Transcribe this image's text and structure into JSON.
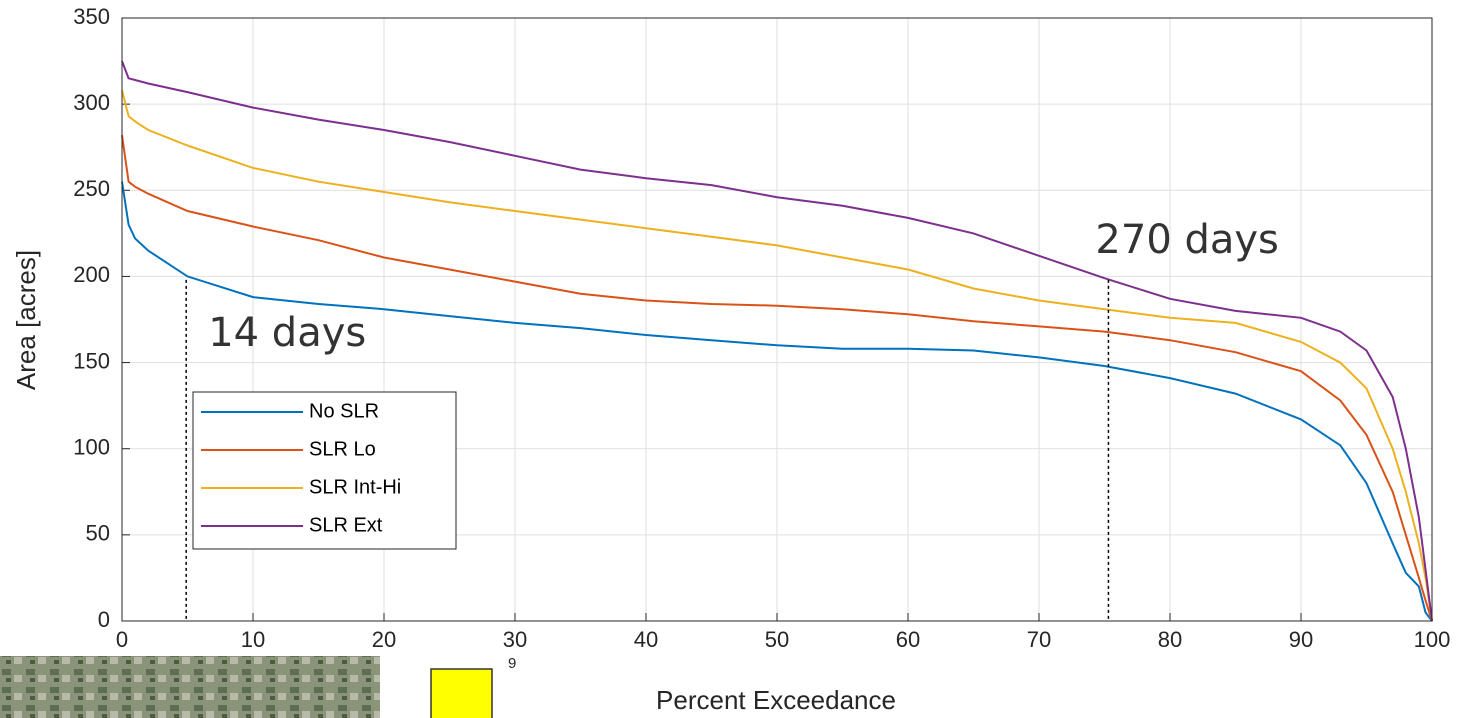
{
  "chart_data": {
    "type": "line",
    "xlabel": "Percent Exceedance",
    "ylabel": "Area [acres]",
    "x": [
      0,
      0.5,
      1,
      2,
      5,
      10,
      15,
      20,
      25,
      30,
      35,
      40,
      45,
      50,
      55,
      60,
      65,
      70,
      75,
      80,
      85,
      90,
      93,
      95,
      97,
      98,
      99,
      99.5,
      100
    ],
    "series": [
      {
        "name": "No SLR",
        "color": "#0072bd",
        "values": [
          255,
          230,
          222,
          215,
          200,
          188,
          184,
          181,
          177,
          173,
          170,
          166,
          163,
          160,
          158,
          158,
          157,
          153,
          148,
          141,
          132,
          117,
          102,
          80,
          45,
          28,
          20,
          5,
          0
        ]
      },
      {
        "name": "SLR Lo",
        "color": "#d95319",
        "values": [
          282,
          255,
          252,
          248,
          238,
          229,
          221,
          211,
          204,
          197,
          190,
          186,
          184,
          183,
          181,
          178,
          174,
          171,
          168,
          163,
          156,
          145,
          128,
          108,
          75,
          50,
          25,
          12,
          0
        ]
      },
      {
        "name": "SLR Int-Hi",
        "color": "#edb120",
        "values": [
          308,
          293,
          290,
          285,
          276,
          263,
          255,
          249,
          243,
          238,
          233,
          228,
          223,
          218,
          211,
          204,
          193,
          186,
          181,
          176,
          173,
          162,
          150,
          135,
          100,
          75,
          45,
          25,
          0
        ]
      },
      {
        "name": "SLR Ext",
        "color": "#7e2f8e",
        "values": [
          325,
          315,
          314,
          312,
          307,
          298,
          291,
          285,
          278,
          270,
          262,
          257,
          253,
          246,
          241,
          234,
          225,
          212,
          199,
          187,
          180,
          176,
          168,
          157,
          130,
          100,
          60,
          30,
          0
        ]
      }
    ],
    "xlim": [
      0,
      100
    ],
    "xticks": [
      0,
      10,
      20,
      30,
      40,
      50,
      60,
      70,
      80,
      90,
      100
    ],
    "ylim": [
      0,
      350
    ],
    "yticks": [
      0,
      50,
      100,
      150,
      200,
      250,
      300,
      350
    ],
    "grid": true,
    "legend": "lower left",
    "annotations": [
      {
        "text": "14 days",
        "x": 4.9,
        "y_top": 198
      },
      {
        "text": "270 days",
        "x": 75.3,
        "y_top": 198
      }
    ]
  },
  "overlay_label": "9"
}
